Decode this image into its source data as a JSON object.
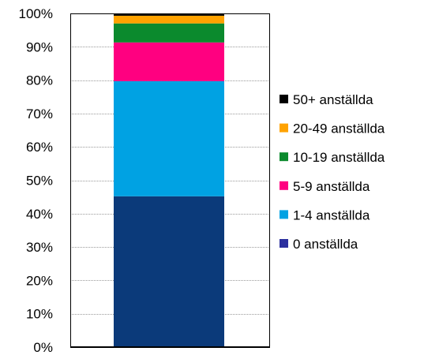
{
  "chart_data": {
    "type": "bar",
    "stacked": true,
    "percent_scale": true,
    "categories": [
      ""
    ],
    "series": [
      {
        "name": "0 anställda",
        "values": [
          45.2
        ],
        "color": "#0b3a7a"
      },
      {
        "name": "1-4 anställda",
        "values": [
          34.5
        ],
        "color": "#00a2e3"
      },
      {
        "name": "5-9 anställda",
        "values": [
          11.6
        ],
        "color": "#ff0080"
      },
      {
        "name": "10-19 anställda",
        "values": [
          5.7
        ],
        "color": "#0b8a2d"
      },
      {
        "name": "20-49 anställda",
        "values": [
          2.3
        ],
        "color": "#ffa200"
      },
      {
        "name": "50+ anställda",
        "values": [
          0.7
        ],
        "color": "#000000"
      }
    ],
    "ylim": [
      0,
      100
    ],
    "yticks": [
      "0%",
      "10%",
      "20%",
      "30%",
      "40%",
      "50%",
      "60%",
      "70%",
      "80%",
      "90%",
      "100%"
    ],
    "grid": true,
    "legend_position": "right",
    "legend_order": [
      "50+ anställda",
      "20-49 anställda",
      "10-19 anställda",
      "5-9 anställda",
      "1-4 anställda",
      "0 anställda"
    ],
    "legend_swatch_colors": {
      "50+ anställda": "#000000",
      "20-49 anställda": "#ffa200",
      "10-19 anställda": "#0b8a2d",
      "5-9 anställda": "#ff0080",
      "1-4 anställda": "#00a2e3",
      "0 anställda": "#2b2f9e"
    }
  }
}
